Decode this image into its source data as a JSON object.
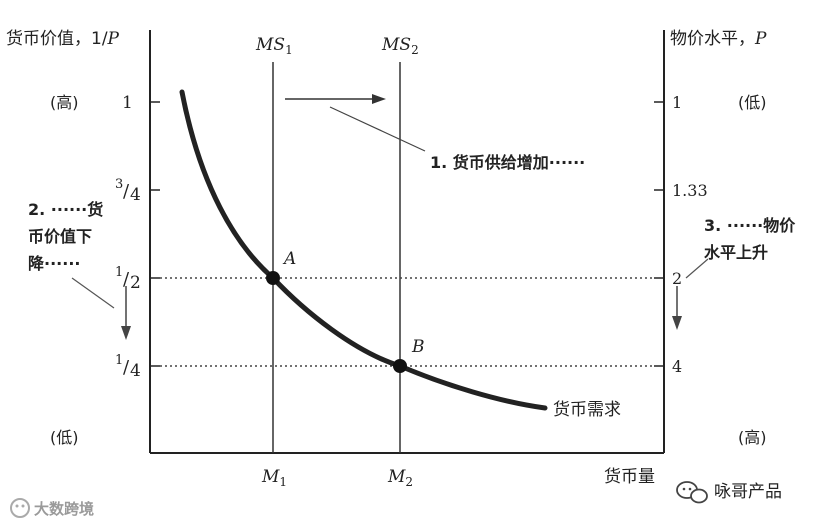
{
  "left_axis": {
    "title_text": "货币价值，1/",
    "title_var": "P",
    "high": "(高)",
    "low": "(低)",
    "ticks": {
      "t1": "1",
      "t34_num": "3",
      "t34_den": "4",
      "t12_num": "1",
      "t12_den": "2",
      "t14_num": "1",
      "t14_den": "4",
      "slash": "/"
    }
  },
  "right_axis": {
    "title_text": "物价水平，",
    "title_var": "P",
    "low": "(低)",
    "high": "(高)",
    "ticks": {
      "t1": "1",
      "t133": "1.33",
      "t2": "2",
      "t4": "4"
    }
  },
  "x_axis": {
    "label": "货币量",
    "m1_base": "M",
    "m1_sub": "1",
    "m2_base": "M",
    "m2_sub": "2"
  },
  "supply": {
    "ms1_base": "MS",
    "ms1_sub": "1",
    "ms2_base": "MS",
    "ms2_sub": "2"
  },
  "points": {
    "a": "A",
    "b": "B"
  },
  "demand_label": "货币需求",
  "annotations": {
    "a1": "1. 货币供给增加······",
    "a2_line1": "2. ······货",
    "a2_line2": "币价值下",
    "a2_line3": "降······",
    "a3_line1": "3. ······物价",
    "a3_line2": "水平上升"
  },
  "watermarks": {
    "left": "大数跨境",
    "right": "咏哥产品"
  }
}
